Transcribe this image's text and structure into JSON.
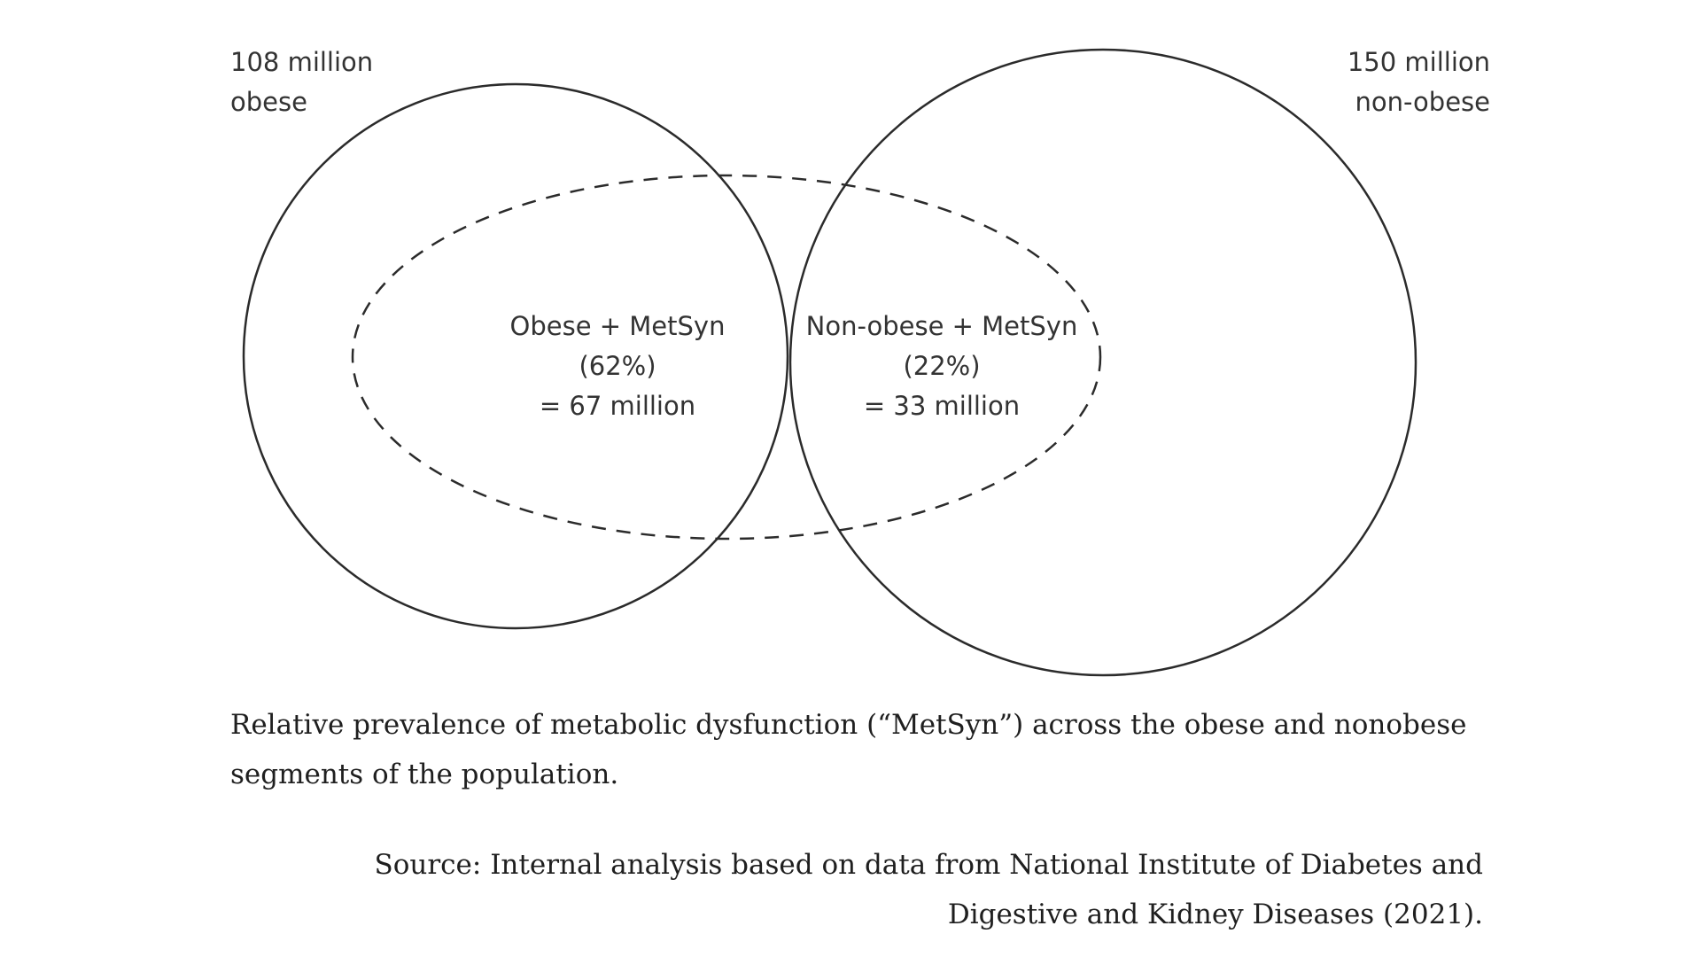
{
  "diagram": {
    "left_circle": {
      "label_line1": "108 million",
      "label_line2": "obese"
    },
    "right_circle": {
      "label_line1": "150 million",
      "label_line2": "non-obese"
    },
    "left_region": {
      "line1": "Obese + MetSyn",
      "line2": "(62%)",
      "line3": "= 67 million"
    },
    "right_region": {
      "line1": "Non-obese + MetSyn",
      "line2": "(22%)",
      "line3": "= 33 million"
    },
    "colors": {
      "stroke": "#2b2b2b",
      "text": "#333333"
    }
  },
  "caption": {
    "line1": "Relative prevalence of metabolic dysfunction (“MetSyn”) across the obese and nonobese",
    "line2": "segments of the population."
  },
  "source": {
    "line1": "Source: Internal analysis based on data from National Institute of Diabetes and",
    "line2": "Digestive and Kidney Diseases (2021)."
  }
}
